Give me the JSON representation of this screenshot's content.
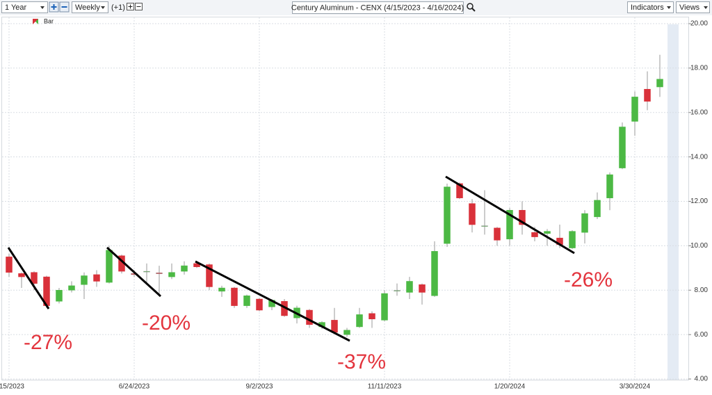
{
  "toolbar": {
    "range": "1 Year",
    "interval": "Weekly",
    "offset": "(+1)",
    "indicators": "Indicators",
    "views": "Views"
  },
  "chart_data": {
    "type": "candlestick",
    "title": "Century Aluminum - CENX (4/15/2023 - 4/16/2024)",
    "categories": [
      "15/2023",
      null,
      null,
      null,
      null,
      null,
      null,
      null,
      null,
      null,
      "6/24/2023",
      null,
      null,
      null,
      null,
      null,
      null,
      null,
      null,
      null,
      "9/2/2023",
      null,
      null,
      null,
      null,
      null,
      null,
      null,
      null,
      null,
      "11/11/2023",
      null,
      null,
      null,
      null,
      null,
      null,
      null,
      null,
      null,
      "1/20/2024",
      null,
      null,
      null,
      null,
      null,
      null,
      null,
      null,
      null,
      "3/30/2024",
      null,
      null
    ],
    "series": [
      {
        "name": "Bar",
        "up_color": "#4cb944",
        "down_color": "#d9313a",
        "open": [
          9.5,
          8.75,
          8.8,
          8.6,
          7.5,
          8.0,
          8.25,
          8.7,
          8.35,
          9.55,
          8.75,
          8.85,
          8.78,
          8.6,
          8.85,
          9.2,
          9.15,
          7.95,
          8.1,
          7.3,
          7.6,
          7.25,
          7.5,
          6.75,
          7.1,
          6.35,
          6.65,
          6.0,
          6.35,
          6.95,
          6.65,
          7.97,
          7.9,
          8.25,
          7.75,
          10.1,
          12.8,
          11.9,
          10.88,
          10.8,
          10.3,
          11.6,
          10.6,
          10.55,
          10.35,
          9.9,
          10.6,
          11.3,
          12.15,
          13.5,
          15.6,
          17.05,
          17.15
        ],
        "high": [
          9.65,
          8.8,
          8.85,
          8.65,
          8.1,
          8.4,
          8.8,
          8.9,
          10.0,
          9.6,
          8.9,
          9.2,
          9.1,
          9.2,
          9.3,
          9.3,
          9.2,
          8.2,
          8.15,
          7.8,
          7.65,
          7.6,
          7.6,
          7.3,
          7.15,
          6.6,
          7.2,
          6.3,
          7.2,
          7.05,
          8.0,
          8.3,
          8.6,
          8.3,
          10.2,
          12.8,
          12.85,
          12.1,
          12.5,
          10.85,
          11.7,
          12.0,
          10.85,
          10.75,
          10.95,
          10.7,
          11.6,
          12.4,
          13.3,
          15.55,
          16.95,
          17.85,
          18.6
        ],
        "low": [
          8.6,
          8.1,
          8.0,
          7.2,
          7.4,
          7.9,
          7.6,
          8.15,
          8.3,
          8.75,
          8.6,
          8.3,
          7.8,
          8.5,
          8.7,
          9.0,
          8.0,
          7.7,
          7.2,
          7.2,
          7.05,
          7.1,
          6.8,
          6.5,
          6.3,
          6.25,
          6.05,
          5.9,
          6.3,
          6.3,
          6.6,
          7.75,
          7.6,
          7.35,
          7.7,
          9.95,
          12.1,
          10.6,
          10.5,
          10.0,
          10.0,
          10.5,
          10.2,
          10.0,
          9.9,
          9.85,
          10.1,
          11.2,
          11.6,
          13.45,
          14.95,
          16.1,
          16.7
        ],
        "close": [
          8.8,
          8.6,
          8.3,
          7.3,
          8.0,
          8.2,
          8.65,
          8.4,
          9.8,
          8.85,
          8.7,
          8.85,
          8.74,
          8.8,
          9.1,
          9.05,
          8.15,
          8.1,
          7.3,
          7.75,
          7.1,
          7.55,
          6.85,
          7.2,
          6.45,
          6.55,
          6.1,
          6.2,
          6.9,
          6.7,
          7.85,
          7.99,
          8.4,
          7.9,
          9.75,
          12.65,
          12.15,
          10.95,
          10.9,
          10.25,
          11.6,
          10.95,
          10.4,
          10.65,
          10.05,
          10.65,
          11.45,
          12.05,
          13.2,
          15.35,
          16.7,
          16.5,
          17.5
        ]
      }
    ],
    "ylim": [
      4,
      20
    ],
    "yticks": [
      {
        "value": 4,
        "label": "4.00"
      },
      {
        "value": 6,
        "label": "6.00"
      },
      {
        "value": 8,
        "label": "8.00"
      },
      {
        "value": 10,
        "label": "10.00"
      },
      {
        "value": 12,
        "label": "12.00"
      },
      {
        "value": 14,
        "label": "14.00"
      },
      {
        "value": 16,
        "label": "16.00"
      },
      {
        "value": 18,
        "label": "18.00"
      },
      {
        "value": 20,
        "label": "20.00"
      }
    ],
    "grid": true,
    "annotations": [
      "-27%",
      "-20%",
      "-37%",
      "-26%"
    ]
  }
}
